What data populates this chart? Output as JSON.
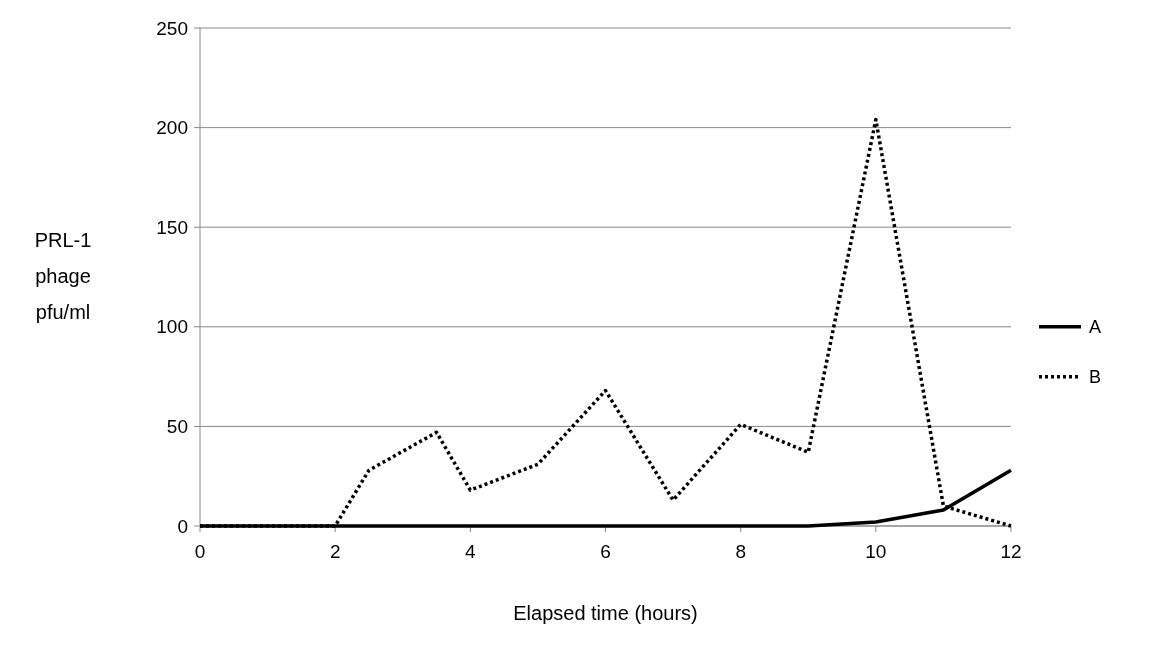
{
  "chart_data": {
    "type": "line",
    "xlabel": "Elapsed time (hours)",
    "ylabel": "PRL-1 phage pfu/ml",
    "xlim": [
      0,
      12
    ],
    "xticks": [
      0,
      2,
      4,
      6,
      8,
      10,
      12
    ],
    "ylim": [
      0,
      250
    ],
    "yticks": [
      0,
      50,
      100,
      150,
      200,
      250
    ],
    "grid": "y",
    "legend": "right",
    "marker": "none",
    "series": [
      {
        "name": "A",
        "color": "#000000",
        "line_style": "solid",
        "x": [
          0,
          1,
          2,
          3,
          4,
          5,
          6,
          7,
          8,
          9,
          10,
          11,
          12
        ],
        "values": [
          0,
          0,
          0,
          0,
          0,
          0,
          0,
          0,
          0,
          0,
          2,
          8,
          28
        ]
      },
      {
        "name": "B",
        "color": "#000000",
        "line_style": "dotted",
        "x": [
          0,
          1,
          2,
          2.5,
          3.5,
          4,
          5,
          6,
          7,
          8,
          9,
          10,
          11,
          12
        ],
        "values": [
          0,
          0,
          0,
          28,
          47,
          18,
          31,
          68,
          13,
          51,
          37,
          204,
          10,
          0
        ]
      }
    ]
  }
}
